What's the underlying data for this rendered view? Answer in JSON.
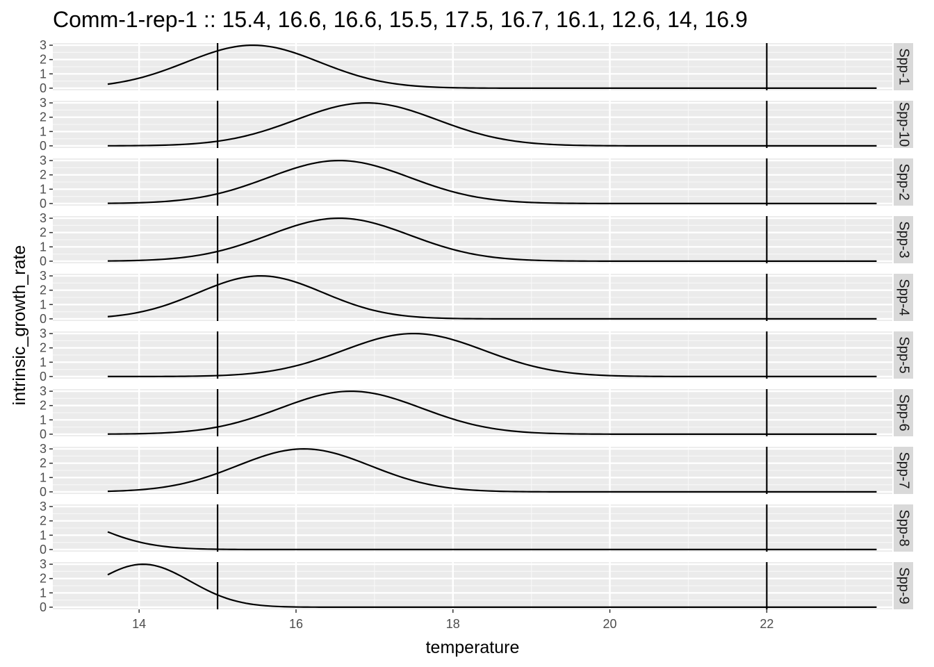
{
  "title": "Comm-1-rep-1 :: 15.4, 16.6, 16.6, 15.5, 17.5, 16.7, 16.1, 12.6, 14, 16.9",
  "chart_data": {
    "type": "line",
    "title": "Comm-1-rep-1 :: 15.4, 16.6, 16.6, 15.5, 17.5, 16.7, 16.1, 12.6, 14, 16.9",
    "xlabel": "temperature",
    "ylabel": "intrinsic_growth_rate",
    "xlim": [
      12.9,
      23.6
    ],
    "ylim": [
      -0.15,
      3.15
    ],
    "x_ticks": [
      14,
      16,
      18,
      20,
      22
    ],
    "x_tick_labels": [
      "14",
      "16",
      "18",
      "20",
      "22"
    ],
    "y_ticks": [
      0,
      1,
      2,
      3
    ],
    "y_tick_labels": [
      "0",
      "1",
      "2",
      "3"
    ],
    "x_range_drawn": [
      13.6,
      23.4
    ],
    "vlines": [
      15,
      22
    ],
    "grid": true,
    "facets": [
      {
        "label": "Spp-1",
        "peak_temp": 15.45,
        "sd": 0.85,
        "peak_rate": 3
      },
      {
        "label": "Spp-10",
        "peak_temp": 16.9,
        "sd": 0.9,
        "peak_rate": 3
      },
      {
        "label": "Spp-2",
        "peak_temp": 16.55,
        "sd": 0.9,
        "peak_rate": 3
      },
      {
        "label": "Spp-3",
        "peak_temp": 16.55,
        "sd": 0.9,
        "peak_rate": 3
      },
      {
        "label": "Spp-4",
        "peak_temp": 15.55,
        "sd": 0.8,
        "peak_rate": 3
      },
      {
        "label": "Spp-5",
        "peak_temp": 17.5,
        "sd": 0.9,
        "peak_rate": 3
      },
      {
        "label": "Spp-6",
        "peak_temp": 16.7,
        "sd": 0.9,
        "peak_rate": 3
      },
      {
        "label": "Spp-7",
        "peak_temp": 16.1,
        "sd": 0.85,
        "peak_rate": 3
      },
      {
        "label": "Spp-8",
        "peak_temp": 12.6,
        "sd": 0.75,
        "peak_rate": 3
      },
      {
        "label": "Spp-9",
        "peak_temp": 14.05,
        "sd": 0.6,
        "peak_rate": 3
      }
    ]
  }
}
